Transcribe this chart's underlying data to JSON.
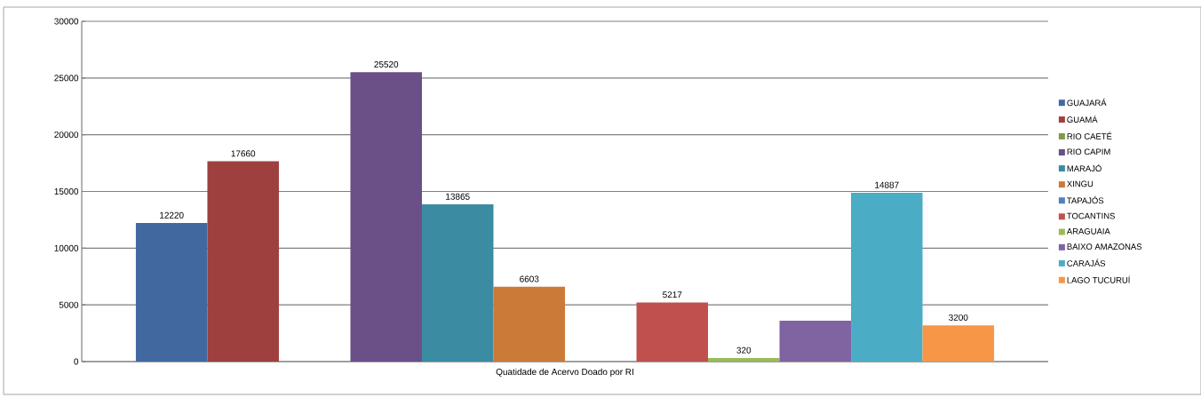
{
  "chart_data": {
    "type": "bar",
    "categories": [
      "Quatidade de Acervo Doado por RI"
    ],
    "series": [
      {
        "name": "GUAJARÁ",
        "color": "#4169a0",
        "values": [
          12220
        ],
        "value_labels": [
          "12220"
        ]
      },
      {
        "name": "GUAMÁ",
        "color": "#9e403e",
        "values": [
          17660
        ],
        "value_labels": [
          "17660"
        ]
      },
      {
        "name": "RIO CAETÉ",
        "color": "#7f9a48",
        "values": [
          null
        ]
      },
      {
        "name": "RIO CAPIM",
        "color": "#6a5086",
        "values": [
          25520
        ],
        "value_labels": [
          "25520"
        ]
      },
      {
        "name": "MARAJÓ",
        "color": "#3b8ca3",
        "values": [
          13865
        ],
        "value_labels": [
          "13865"
        ]
      },
      {
        "name": "XINGU",
        "color": "#cb7a38",
        "values": [
          6603
        ],
        "value_labels": [
          "6603"
        ]
      },
      {
        "name": "TAPAJÓS",
        "color": "#4f81bd",
        "values": [
          null
        ]
      },
      {
        "name": "TOCANTINS",
        "color": "#c0504d",
        "values": [
          5217
        ],
        "value_labels": [
          "5217"
        ]
      },
      {
        "name": "ARAGUAIA",
        "color": "#9bbb59",
        "values": [
          320
        ],
        "value_labels": [
          "320"
        ]
      },
      {
        "name": "BAIXO AMAZONAS",
        "color": "#8064a2",
        "values": [
          3600
        ],
        "value_labels": [
          null
        ]
      },
      {
        "name": "CARAJÁS",
        "color": "#4bacc6",
        "values": [
          14887
        ],
        "value_labels": [
          "14887"
        ]
      },
      {
        "name": "LAGO TUCURUÍ",
        "color": "#f79646",
        "values": [
          3200
        ],
        "value_labels": [
          "3200"
        ]
      }
    ],
    "ylim": [
      0,
      30000
    ],
    "yticks": [
      0,
      5000,
      10000,
      15000,
      20000,
      25000,
      30000
    ],
    "grid": "y",
    "legend": "right"
  }
}
